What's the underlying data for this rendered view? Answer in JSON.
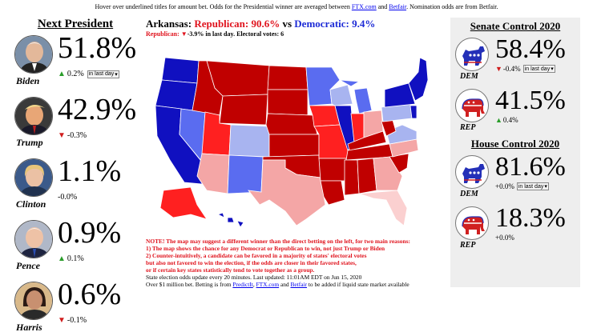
{
  "top_note": {
    "text_before": "Hover over underlined titles for amount bet. Odds for the Presidential winner are averaged between ",
    "ftx": "FTX.com",
    "and": " and ",
    "betfair": "Betfair",
    "text_after": ". Nomination odds are from Betfair."
  },
  "next_president": {
    "title": "Next President",
    "candidates": [
      {
        "name": "Biden",
        "pct": "51.8%",
        "change": "0.2%",
        "direction": "up",
        "dropdown": "in last day"
      },
      {
        "name": "Trump",
        "pct": "42.9%",
        "change": "-0.3%",
        "direction": "down"
      },
      {
        "name": "Clinton",
        "pct": "1.1%",
        "change": "-0.0%",
        "direction": "none"
      },
      {
        "name": "Pence",
        "pct": "0.9%",
        "change": "0.1%",
        "direction": "up"
      },
      {
        "name": "Harris",
        "pct": "0.6%",
        "change": "-0.1%",
        "direction": "down"
      }
    ]
  },
  "map": {
    "state": "Arkansas:",
    "rep_label": "Republican: 90.6%",
    "vs": " vs ",
    "dem_label": "Democratic: 9.4%",
    "sub_rep": "Republican: ",
    "sub_change": "-3.9% in last day. Electoral votes: 6",
    "colors": {
      "solid_rep": "#c00000",
      "lean_rep": "#ff2020",
      "tossup_rep": "#f4a6a6",
      "solid_dem": "#1010c0",
      "lean_dem": "#5a6cf0",
      "tossup_dem": "#a8b4f0"
    }
  },
  "notes": {
    "red_lines": [
      "NOTE! The map may suggest a different winner than the direct betting on the left, for two main reasons:",
      "1) The map shows the chance for any Democrat or Republican to win, not just Trump or Biden",
      "2) Counter-intuitively, a candidate can be favored in a majority of states' electoral votes",
      "but also not favored to win the election, if the odds are closer in their favored states,",
      "or if certain key states statistically tend to vote together as a group."
    ],
    "update_line": "State election odds update every 20 minutes. Last updated: 11:01AM EDT on Jun 15, 2020",
    "bet_before": "Over $1 million bet. Betting is from ",
    "predictit": "PredictIt",
    "comma": ", ",
    "ftx": "FTX.com",
    "and": " and ",
    "betfair": "Betfair",
    "bet_after": " to be added if liquid state market available"
  },
  "senate": {
    "title": "Senate Control 2020",
    "dem": {
      "label": "DEM",
      "pct": "58.4%",
      "change": "-0.4%",
      "direction": "down",
      "dropdown": "in last day"
    },
    "rep": {
      "label": "REP",
      "pct": "41.5%",
      "change": "0.4%",
      "direction": "up"
    }
  },
  "house": {
    "title": "House Control 2020",
    "dem": {
      "label": "DEM",
      "pct": "81.6%",
      "change": "+0.0%",
      "direction": "none",
      "dropdown": "in last day"
    },
    "rep": {
      "label": "REP",
      "pct": "18.3%",
      "change": "+0.0%",
      "direction": "none"
    }
  }
}
